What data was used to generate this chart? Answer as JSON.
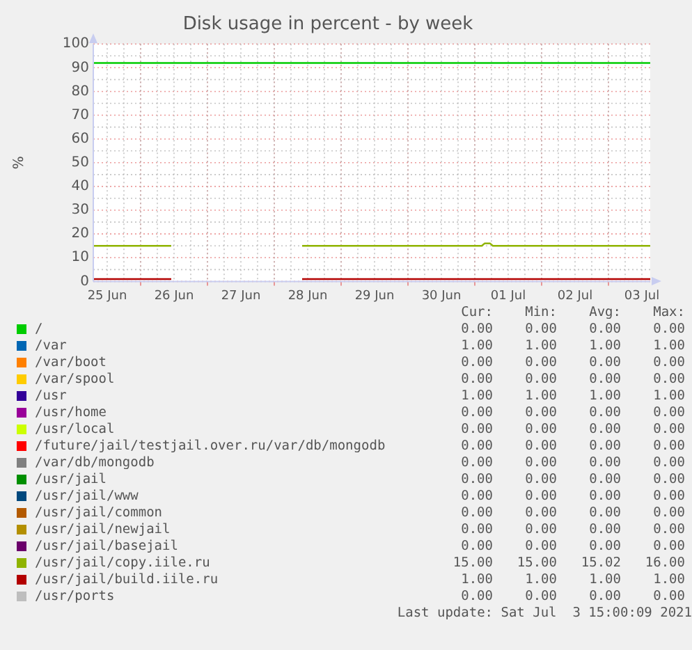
{
  "chart_data": {
    "type": "line",
    "title": "Disk usage in percent - by week",
    "ylabel": "%",
    "xlim": [
      "2021-06-25T07:00",
      "2021-07-03T15:00"
    ],
    "xticks": [
      {
        "value": "2021-06-25T12:00",
        "label": "25 Jun"
      },
      {
        "value": "2021-06-26T00:00",
        "label": null
      },
      {
        "value": "2021-06-26T12:00",
        "label": "26 Jun"
      },
      {
        "value": "2021-06-27T00:00",
        "label": null
      },
      {
        "value": "2021-06-27T12:00",
        "label": "27 Jun"
      },
      {
        "value": "2021-06-28T00:00",
        "label": null
      },
      {
        "value": "2021-06-28T12:00",
        "label": "28 Jun"
      },
      {
        "value": "2021-06-29T00:00",
        "label": null
      },
      {
        "value": "2021-06-29T12:00",
        "label": "29 Jun"
      },
      {
        "value": "2021-06-30T00:00",
        "label": null
      },
      {
        "value": "2021-06-30T12:00",
        "label": "30 Jun"
      },
      {
        "value": "2021-07-01T00:00",
        "label": null
      },
      {
        "value": "2021-07-01T12:00",
        "label": "01 Jul"
      },
      {
        "value": "2021-07-02T00:00",
        "label": null
      },
      {
        "value": "2021-07-02T12:00",
        "label": "02 Jul"
      },
      {
        "value": "2021-07-03T00:00",
        "label": null
      },
      {
        "value": "2021-07-03T12:00",
        "label": "03 Jul"
      }
    ],
    "ylim": [
      0,
      100
    ],
    "yticks": [
      0,
      10,
      20,
      30,
      40,
      50,
      60,
      70,
      80,
      90,
      100
    ],
    "grid": true,
    "legend": "bottom",
    "marker": "none",
    "line_style": "solid",
    "series": [
      {
        "name": "/",
        "color": "#00cc00",
        "x": [
          "2021-06-25T07:00",
          "2021-07-03T15:00"
        ],
        "values": [
          92,
          92
        ]
      },
      {
        "name": "/var",
        "color": "#0066b3"
      },
      {
        "name": "/var/boot",
        "color": "#ff8000"
      },
      {
        "name": "/var/spool",
        "color": "#ffcc00"
      },
      {
        "name": "/usr",
        "color": "#330099"
      },
      {
        "name": "/usr/home",
        "color": "#990099"
      },
      {
        "name": "/usr/local",
        "color": "#ccff00"
      },
      {
        "name": "/future/jail/testjail.over.ru/var/db/mongodb",
        "color": "#ff0000"
      },
      {
        "name": "/var/db/mongodb",
        "color": "#808080"
      },
      {
        "name": "/usr/jail",
        "color": "#008f00"
      },
      {
        "name": "/usr/jail/www",
        "color": "#00487d"
      },
      {
        "name": "/usr/jail/common",
        "color": "#b35a00"
      },
      {
        "name": "/usr/jail/newjail",
        "color": "#b38f00"
      },
      {
        "name": "/usr/jail/basejail",
        "color": "#6b006b"
      },
      {
        "name": "/usr/jail/copy.iile.ru",
        "color": "#8fb300",
        "x": [
          "2021-06-25T07:00",
          "2021-06-26T11:00",
          "2021-06-26T11:30",
          "2021-06-28T10:00",
          "2021-07-01T02:30",
          "2021-07-01T03:30",
          "2021-07-01T05:30",
          "2021-07-01T06:30",
          "2021-07-03T15:00"
        ],
        "values": [
          15,
          15,
          null,
          15,
          15,
          16,
          16,
          15,
          15
        ]
      },
      {
        "name": "/usr/jail/build.iile.ru",
        "color": "#b30000",
        "x": [
          "2021-06-25T07:00",
          "2021-06-26T11:00",
          "2021-06-26T11:30",
          "2021-06-28T10:00",
          "2021-07-03T15:00"
        ],
        "values": [
          1,
          1,
          null,
          1,
          1
        ]
      },
      {
        "name": "/usr/ports",
        "color": "#bebebe"
      }
    ],
    "annotations": [
      "Cur:",
      "Min:",
      "Avg:",
      "Max:",
      "0.00",
      "0.00",
      "0.00",
      "0.00",
      "1.00",
      "1.00",
      "1.00",
      "1.00",
      "0.00",
      "0.00",
      "0.00",
      "0.00",
      "0.00",
      "0.00",
      "0.00",
      "0.00",
      "1.00",
      "1.00",
      "1.00",
      "1.00",
      "0.00",
      "0.00",
      "0.00",
      "0.00",
      "0.00",
      "0.00",
      "0.00",
      "0.00",
      "0.00",
      "0.00",
      "0.00",
      "0.00",
      "0.00",
      "0.00",
      "0.00",
      "0.00",
      "0.00",
      "0.00",
      "0.00",
      "0.00",
      "0.00",
      "0.00",
      "0.00",
      "0.00",
      "0.00",
      "0.00",
      "0.00",
      "0.00",
      "0.00",
      "0.00",
      "0.00",
      "0.00",
      "0.00",
      "0.00",
      "0.00",
      "0.00",
      "15.00",
      "15.00",
      "15.02",
      "16.00",
      "1.00",
      "1.00",
      "1.00",
      "1.00",
      "0.00",
      "0.00",
      "0.00",
      "0.00",
      "Last update: Sat Jul  3 15:00:09 2021"
    ]
  }
}
